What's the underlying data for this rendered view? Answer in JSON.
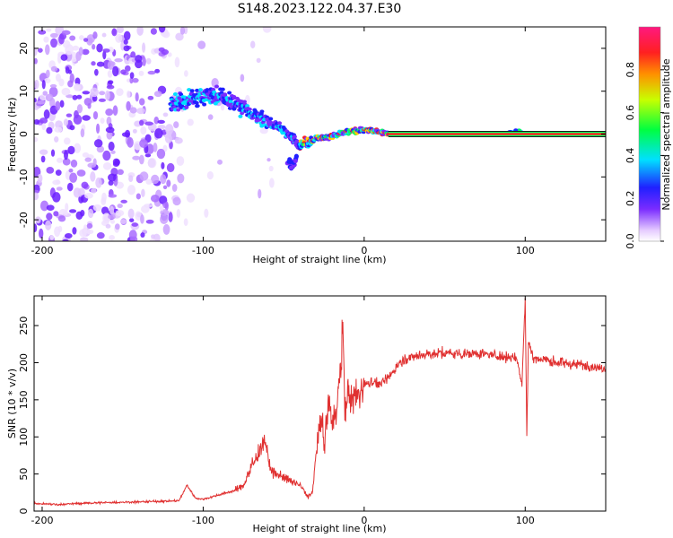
{
  "title": "S148.2023.122.04.37.E30",
  "chart_data": [
    {
      "type": "heatmap",
      "xlabel": "Height of straight line (km)",
      "ylabel": "Frequency (Hz)",
      "xlim": [
        -205,
        150
      ],
      "ylim": [
        -25,
        25
      ],
      "xticks": [
        -200,
        -100,
        0,
        100
      ],
      "yticks": [
        -20,
        -10,
        0,
        10,
        20
      ],
      "colorbar": {
        "label": "Normalized spectral amplitude",
        "range": [
          0,
          1
        ],
        "ticks": [
          "0.0",
          "0.2",
          "0.4",
          "0.6",
          "0.8"
        ],
        "tick_values": [
          0.0,
          0.2,
          0.4,
          0.6,
          0.8
        ]
      },
      "ridge": {
        "x": [
          -120,
          -110,
          -100,
          -90,
          -80,
          -70,
          -60,
          -50,
          -45,
          -40,
          -35,
          -30,
          -20,
          -10,
          0,
          10,
          15,
          20,
          40,
          60,
          80,
          90,
          95,
          100,
          120,
          150
        ],
        "y": [
          7,
          8,
          9,
          9,
          7,
          5,
          3,
          1,
          -1,
          -2.5,
          -2,
          -1,
          -0.5,
          0.5,
          1,
          0.5,
          0,
          0,
          0,
          0,
          0,
          0.3,
          0.8,
          0,
          0,
          0
        ]
      },
      "side_lobe": {
        "x": [
          -48,
          -45,
          -42
        ],
        "y": [
          -6,
          -7,
          -6
        ]
      },
      "steady_band": {
        "x_start": 15,
        "x_end": 150,
        "frequency": 0,
        "amplitude": 0.9
      },
      "noise_region": {
        "x_start": -205,
        "x_end": -110,
        "y_range": [
          -25,
          25
        ]
      },
      "grid": false
    },
    {
      "type": "line",
      "xlabel": "Height of straight line (km)",
      "ylabel": "SNR (10 * v/v)",
      "xlim": [
        -205,
        150
      ],
      "ylim": [
        0,
        290
      ],
      "xticks": [
        -200,
        -100,
        0,
        100
      ],
      "yticks": [
        0,
        50,
        100,
        150,
        200,
        250
      ],
      "color": "#e03030",
      "series": [
        {
          "x": [
            -205,
            -190,
            -170,
            -150,
            -130,
            -115,
            -110,
            -105,
            -100,
            -90,
            -80,
            -75,
            -70,
            -65,
            -62,
            -60,
            -58,
            -55,
            -50,
            -45,
            -40,
            -35,
            -32,
            -30,
            -28,
            -26,
            -25,
            -22,
            -20,
            -18,
            -16,
            -14,
            -13,
            -12,
            -10,
            -8,
            -5,
            -2,
            0,
            5,
            10,
            15,
            20,
            25,
            30,
            35,
            40,
            50,
            60,
            70,
            80,
            90,
            95,
            98,
            100,
            101,
            102,
            105,
            110,
            120,
            130,
            140,
            150
          ],
          "y": [
            10,
            9,
            11,
            12,
            13,
            14,
            35,
            18,
            16,
            22,
            28,
            35,
            60,
            80,
            95,
            75,
            55,
            50,
            45,
            40,
            35,
            20,
            25,
            75,
            110,
            130,
            80,
            150,
            120,
            135,
            160,
            220,
            250,
            130,
            165,
            150,
            155,
            160,
            170,
            175,
            170,
            180,
            195,
            205,
            208,
            210,
            212,
            213,
            212,
            213,
            210,
            208,
            205,
            170,
            290,
            100,
            230,
            205,
            205,
            200,
            198,
            196,
            193
          ]
        }
      ],
      "grid": false
    }
  ]
}
